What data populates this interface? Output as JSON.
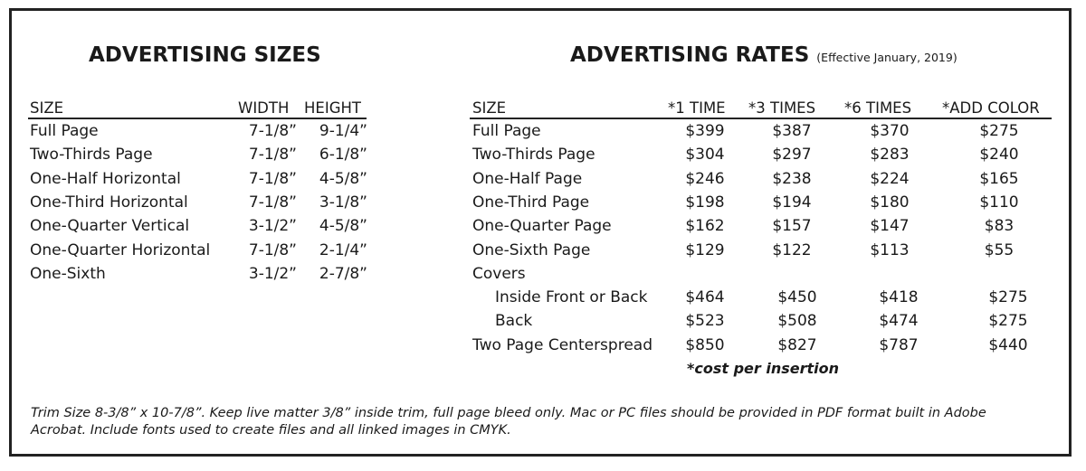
{
  "sizes": {
    "title": "ADVERTISING SIZES",
    "headers": {
      "size": "SIZE",
      "width": "WIDTH",
      "height": "HEIGHT"
    },
    "rows": [
      {
        "size": "Full Page",
        "width": "7-1/8”",
        "height": "9-1/4”"
      },
      {
        "size": "Two-Thirds Page",
        "width": "7-1/8”",
        "height": "6-1/8”"
      },
      {
        "size": "One-Half Horizontal",
        "width": "7-1/8”",
        "height": "4-5/8”"
      },
      {
        "size": "One-Third Horizontal",
        "width": "7-1/8”",
        "height": "3-1/8”"
      },
      {
        "size": "One-Quarter Vertical",
        "width": "3-1/2”",
        "height": "4-5/8”"
      },
      {
        "size": "One-Quarter Horizontal",
        "width": "7-1/8”",
        "height": "2-1/4”"
      },
      {
        "size": "One-Sixth",
        "width": "3-1/2”",
        "height": "2-7/8”"
      }
    ]
  },
  "rates": {
    "title": "ADVERTISING RATES",
    "subtitle": "(Effective January, 2019)",
    "headers": {
      "size": "SIZE",
      "t1": "*1 TIME",
      "t3": "*3 TIMES",
      "t6": "*6 TIMES",
      "color": "*ADD COLOR"
    },
    "rows": [
      {
        "size": "Full Page",
        "t1": "$399",
        "t3": "$387",
        "t6": "$370",
        "color": "$275"
      },
      {
        "size": "Two-Thirds Page",
        "t1": "$304",
        "t3": "$297",
        "t6": "$283",
        "color": "$240"
      },
      {
        "size": "One-Half Page",
        "t1": "$246",
        "t3": "$238",
        "t6": "$224",
        "color": "$165"
      },
      {
        "size": "One-Third Page",
        "t1": "$198",
        "t3": "$194",
        "t6": "$180",
        "color": "$110"
      },
      {
        "size": "One-Quarter Page",
        "t1": "$162",
        "t3": "$157",
        "t6": "$147",
        "color": "$83"
      },
      {
        "size": "One-Sixth Page",
        "t1": "$129",
        "t3": "$122",
        "t6": "$113",
        "color": "$55"
      },
      {
        "size": "Covers",
        "t1": "",
        "t3": "",
        "t6": "",
        "color": ""
      },
      {
        "size": "Inside Front or Back",
        "t1": "$464",
        "t3": "$450",
        "t6": "$418",
        "color": "$275"
      },
      {
        "size": "Back",
        "t1": "$523",
        "t3": "$508",
        "t6": "$474",
        "color": "$275"
      },
      {
        "size": "Two Page Centerspread",
        "t1": "$850",
        "t3": "$827",
        "t6": "$787",
        "color": "$440"
      }
    ],
    "note": "*cost per insertion"
  },
  "footer": "Trim Size 8-3/8” x 10-7/8”. Keep live matter 3/8” inside trim, full page bleed only. Mac or PC files should be provided in PDF format built in Adobe Acrobat. Include fonts used to create files and all linked images in CMYK."
}
